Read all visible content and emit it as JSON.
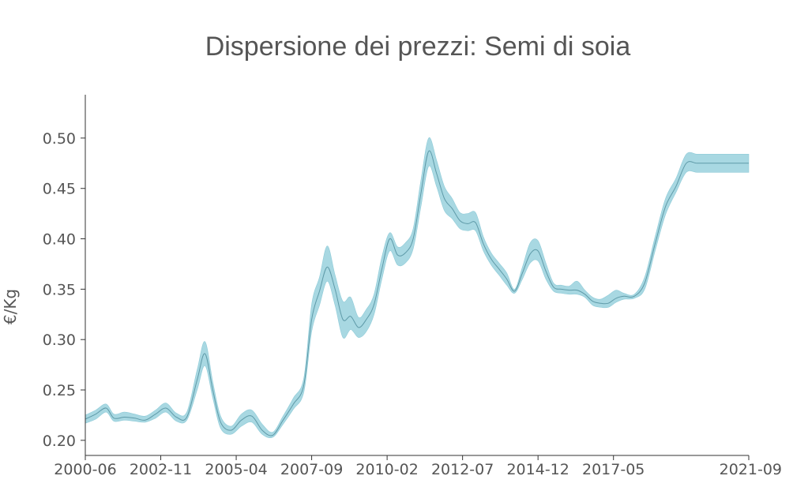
{
  "chart_data": {
    "type": "area",
    "title": "Dispersione dei prezzi: Semi di soia",
    "xlabel": "",
    "ylabel": "€/Kg",
    "x_tick_labels": [
      "2000-06",
      "2002-11",
      "2005-04",
      "2007-09",
      "2010-02",
      "2012-07",
      "2014-12",
      "2017-05",
      "2021-09"
    ],
    "x_tick_dates": [
      "2000-06",
      "2002-11",
      "2005-04",
      "2007-09",
      "2010-02",
      "2012-07",
      "2014-12",
      "2017-05",
      "2021-09"
    ],
    "y_ticks": [
      0.2,
      0.25,
      0.3,
      0.35,
      0.4,
      0.45,
      0.5
    ],
    "y_tick_labels": [
      "0.20",
      "0.25",
      "0.30",
      "0.35",
      "0.40",
      "0.45",
      "0.50"
    ],
    "xlim": [
      "2000-06",
      "2021-09"
    ],
    "ylim": [
      0.185,
      0.543
    ],
    "grid": false,
    "legend": "none",
    "colors": {
      "band": "#a8d8e2",
      "band_edge": "#8fcbd8",
      "median": "#5e9aa8",
      "axis": "#333333",
      "text": "#555555"
    },
    "series": [
      {
        "x": [
          "2000-06",
          "2000-10",
          "2001-02",
          "2001-05",
          "2001-09",
          "2002-01",
          "2002-05",
          "2002-09",
          "2003-01",
          "2003-05",
          "2003-09",
          "2004-01",
          "2004-04",
          "2004-07",
          "2004-10",
          "2005-02",
          "2005-06",
          "2005-10",
          "2006-02",
          "2006-06",
          "2006-10",
          "2007-02",
          "2007-06",
          "2007-09",
          "2007-12",
          "2008-03",
          "2008-06",
          "2008-09",
          "2008-12",
          "2009-03",
          "2009-06",
          "2009-09",
          "2009-12",
          "2010-03",
          "2010-06",
          "2010-09",
          "2010-12",
          "2011-03",
          "2011-06",
          "2011-09",
          "2011-12",
          "2012-03",
          "2012-06",
          "2012-09",
          "2012-12",
          "2013-03",
          "2013-06",
          "2013-09",
          "2013-12",
          "2014-03",
          "2014-06",
          "2014-09",
          "2014-12",
          "2015-03",
          "2015-06",
          "2015-09",
          "2015-12",
          "2016-03",
          "2016-06",
          "2016-09",
          "2016-12",
          "2017-03",
          "2017-06",
          "2017-09",
          "2018-01",
          "2018-05",
          "2018-09",
          "2019-01",
          "2019-05",
          "2019-09",
          "2020-01",
          "2020-05",
          "2020-09",
          "2021-01",
          "2021-05",
          "2021-09"
        ],
        "median": [
          0.221,
          0.226,
          0.232,
          0.222,
          0.223,
          0.222,
          0.22,
          0.226,
          0.232,
          0.223,
          0.223,
          0.26,
          0.286,
          0.25,
          0.218,
          0.21,
          0.22,
          0.224,
          0.21,
          0.205,
          0.22,
          0.236,
          0.255,
          0.32,
          0.348,
          0.372,
          0.35,
          0.32,
          0.323,
          0.312,
          0.32,
          0.335,
          0.37,
          0.4,
          0.384,
          0.386,
          0.4,
          0.445,
          0.487,
          0.465,
          0.44,
          0.43,
          0.418,
          0.415,
          0.416,
          0.395,
          0.38,
          0.37,
          0.36,
          0.348,
          0.366,
          0.385,
          0.388,
          0.368,
          0.352,
          0.35,
          0.349,
          0.349,
          0.345,
          0.338,
          0.336,
          0.336,
          0.341,
          0.343,
          0.343,
          0.356,
          0.395,
          0.432,
          0.452,
          0.475,
          0.475,
          0.475,
          0.475,
          0.475,
          0.475,
          0.475
        ],
        "lower": [
          0.217,
          0.221,
          0.228,
          0.219,
          0.22,
          0.219,
          0.218,
          0.222,
          0.228,
          0.219,
          0.22,
          0.25,
          0.274,
          0.242,
          0.212,
          0.206,
          0.214,
          0.218,
          0.206,
          0.203,
          0.216,
          0.231,
          0.248,
          0.308,
          0.334,
          0.358,
          0.334,
          0.302,
          0.31,
          0.302,
          0.308,
          0.325,
          0.36,
          0.388,
          0.374,
          0.376,
          0.39,
          0.432,
          0.472,
          0.452,
          0.428,
          0.42,
          0.41,
          0.408,
          0.408,
          0.388,
          0.374,
          0.364,
          0.354,
          0.346,
          0.36,
          0.376,
          0.378,
          0.36,
          0.348,
          0.346,
          0.345,
          0.345,
          0.342,
          0.334,
          0.332,
          0.332,
          0.337,
          0.34,
          0.341,
          0.35,
          0.388,
          0.424,
          0.446,
          0.466,
          0.466,
          0.466,
          0.466,
          0.466,
          0.466,
          0.466
        ],
        "upper": [
          0.225,
          0.23,
          0.236,
          0.226,
          0.228,
          0.226,
          0.224,
          0.23,
          0.237,
          0.227,
          0.228,
          0.27,
          0.298,
          0.258,
          0.224,
          0.214,
          0.226,
          0.23,
          0.216,
          0.208,
          0.224,
          0.242,
          0.262,
          0.335,
          0.362,
          0.393,
          0.364,
          0.338,
          0.342,
          0.322,
          0.33,
          0.345,
          0.382,
          0.406,
          0.392,
          0.396,
          0.41,
          0.458,
          0.5,
          0.478,
          0.452,
          0.44,
          0.426,
          0.425,
          0.426,
          0.402,
          0.386,
          0.376,
          0.366,
          0.35,
          0.372,
          0.396,
          0.398,
          0.376,
          0.356,
          0.354,
          0.353,
          0.358,
          0.349,
          0.342,
          0.34,
          0.344,
          0.349,
          0.346,
          0.345,
          0.362,
          0.402,
          0.44,
          0.46,
          0.484,
          0.484,
          0.484,
          0.484,
          0.484,
          0.484,
          0.484
        ]
      }
    ]
  }
}
